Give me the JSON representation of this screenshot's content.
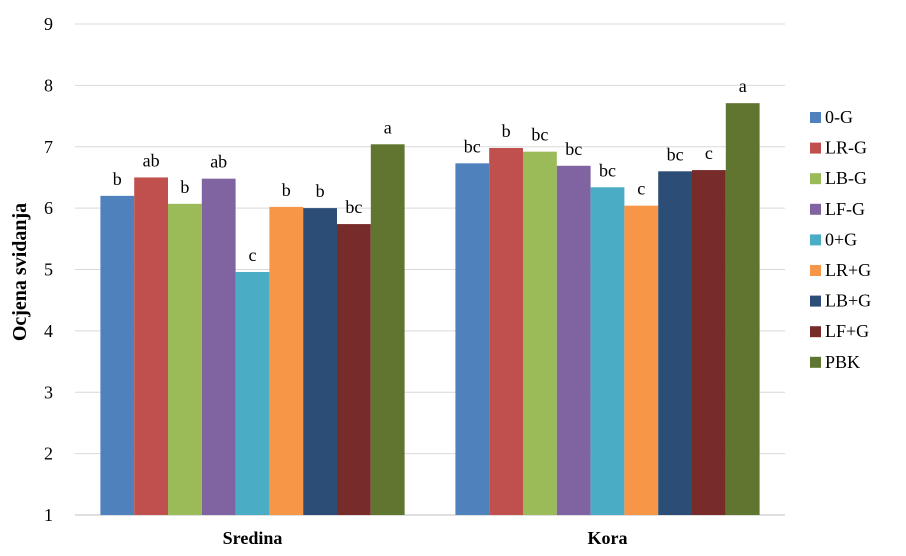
{
  "chart_data": {
    "type": "bar",
    "title": "",
    "xlabel": "",
    "ylabel": "Ocjena svidanja",
    "ylim": [
      1,
      9
    ],
    "yticks": [
      1,
      2,
      3,
      4,
      5,
      6,
      7,
      8,
      9
    ],
    "grid": true,
    "legend_position": "right",
    "categories": [
      "Sredina",
      "Kora"
    ],
    "series": [
      {
        "name": "0-G",
        "color": "#4F81BD",
        "values": [
          6.2,
          6.73
        ],
        "labels": [
          "b",
          "bc"
        ]
      },
      {
        "name": "LR-G",
        "color": "#C0504D",
        "values": [
          6.5,
          6.98
        ],
        "labels": [
          "ab",
          "b"
        ]
      },
      {
        "name": "LB-G",
        "color": "#9BBB59",
        "values": [
          6.07,
          6.92
        ],
        "labels": [
          "b",
          "bc"
        ]
      },
      {
        "name": "LF-G",
        "color": "#8064A2",
        "values": [
          6.48,
          6.69
        ],
        "labels": [
          "ab",
          "bc"
        ]
      },
      {
        "name": "0+G",
        "color": "#4BACC6",
        "values": [
          4.96,
          6.34
        ],
        "labels": [
          "c",
          "bc"
        ]
      },
      {
        "name": "LR+G",
        "color": "#F79646",
        "values": [
          6.02,
          6.04
        ],
        "labels": [
          "b",
          "c"
        ]
      },
      {
        "name": "LB+G",
        "color": "#2C4D75",
        "values": [
          6.0,
          6.6
        ],
        "labels": [
          "b",
          "bc"
        ]
      },
      {
        "name": "LF+G",
        "color": "#772C2A",
        "values": [
          5.74,
          6.62
        ],
        "labels": [
          "bc",
          "c"
        ]
      },
      {
        "name": "PBK",
        "color": "#5F7530",
        "values": [
          7.04,
          7.71
        ],
        "labels": [
          "a",
          "a"
        ]
      }
    ]
  }
}
